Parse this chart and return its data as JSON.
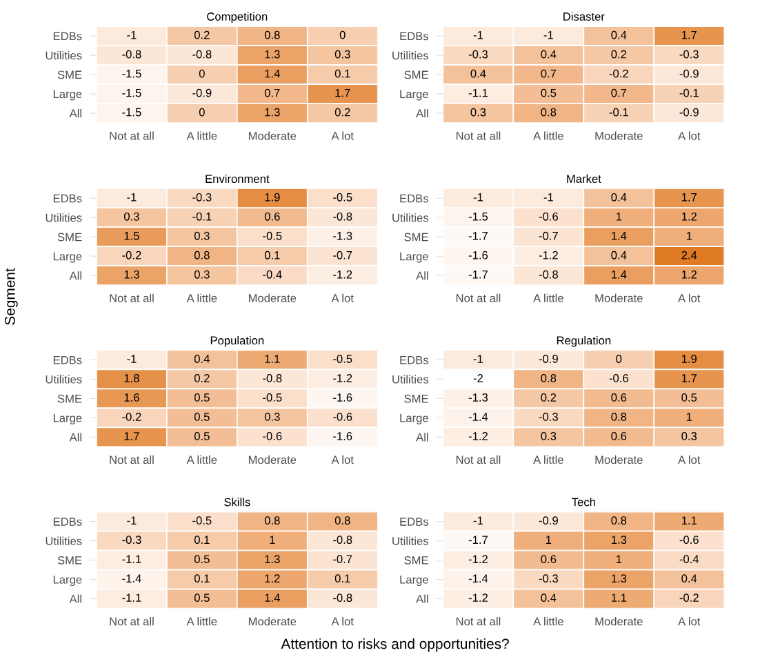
{
  "chart_data": [
    {
      "type": "heatmap",
      "title": "Competition",
      "categories": [
        "Not at all",
        "A little",
        "Moderate",
        "A lot"
      ],
      "y_categories": [
        "EDBs",
        "Utilities",
        "SME",
        "Large",
        "All"
      ],
      "data_labels": true,
      "cells": [
        [
          -1,
          0.2,
          0.8,
          0
        ],
        [
          -0.8,
          -0.8,
          1.3,
          0.3
        ],
        [
          -1.5,
          0,
          1.4,
          0.1
        ],
        [
          -1.5,
          -0.9,
          0.7,
          1.7
        ],
        [
          -1.5,
          0,
          1.3,
          0.2
        ]
      ]
    },
    {
      "type": "heatmap",
      "title": "Disaster",
      "categories": [
        "Not at all",
        "A little",
        "Moderate",
        "A lot"
      ],
      "y_categories": [
        "EDBs",
        "Utilities",
        "SME",
        "Large",
        "All"
      ],
      "data_labels": true,
      "cells": [
        [
          -1,
          -1,
          0.4,
          1.7
        ],
        [
          -0.3,
          0.4,
          0.2,
          -0.3
        ],
        [
          0.4,
          0.7,
          -0.2,
          -0.9
        ],
        [
          -1.1,
          0.5,
          0.7,
          -0.1
        ],
        [
          0.3,
          0.8,
          -0.1,
          -0.9
        ]
      ]
    },
    {
      "type": "heatmap",
      "title": "Environment",
      "ylabel": "Segment",
      "categories": [
        "Not at all",
        "A little",
        "Moderate",
        "A lot"
      ],
      "y_categories": [
        "EDBs",
        "Utilities",
        "SME",
        "Large",
        "All"
      ],
      "data_labels": true,
      "cells": [
        [
          -1,
          -0.3,
          1.9,
          -0.5
        ],
        [
          0.3,
          -0.1,
          0.6,
          -0.8
        ],
        [
          1.5,
          0.3,
          -0.5,
          -1.3
        ],
        [
          -0.2,
          0.8,
          0.1,
          -0.7
        ],
        [
          1.3,
          0.3,
          -0.4,
          -1.2
        ]
      ]
    },
    {
      "type": "heatmap",
      "title": "Market",
      "categories": [
        "Not at all",
        "A little",
        "Moderate",
        "A lot"
      ],
      "y_categories": [
        "EDBs",
        "Utilities",
        "SME",
        "Large",
        "All"
      ],
      "data_labels": true,
      "cells": [
        [
          -1,
          -1,
          0.4,
          1.7
        ],
        [
          -1.5,
          -0.6,
          1,
          1.2
        ],
        [
          -1.7,
          -0.7,
          1.4,
          1
        ],
        [
          -1.6,
          -1.2,
          0.4,
          2.4
        ],
        [
          -1.7,
          -0.8,
          1.4,
          1.2
        ]
      ]
    },
    {
      "type": "heatmap",
      "title": "Population",
      "categories": [
        "Not at all",
        "A little",
        "Moderate",
        "A lot"
      ],
      "y_categories": [
        "EDBs",
        "Utilities",
        "SME",
        "Large",
        "All"
      ],
      "data_labels": true,
      "cells": [
        [
          -1,
          0.4,
          1.1,
          -0.5
        ],
        [
          1.8,
          0.2,
          -0.8,
          -1.2
        ],
        [
          1.6,
          0.5,
          -0.5,
          -1.6
        ],
        [
          -0.2,
          0.5,
          0.3,
          -0.6
        ],
        [
          1.7,
          0.5,
          -0.6,
          -1.6
        ]
      ]
    },
    {
      "type": "heatmap",
      "title": "Regulation",
      "categories": [
        "Not at all",
        "A little",
        "Moderate",
        "A lot"
      ],
      "y_categories": [
        "EDBs",
        "Utilities",
        "SME",
        "Large",
        "All"
      ],
      "data_labels": true,
      "cells": [
        [
          -1,
          -0.9,
          0,
          1.9
        ],
        [
          -2,
          0.8,
          -0.6,
          1.7
        ],
        [
          -1.3,
          0.2,
          0.6,
          0.5
        ],
        [
          -1.4,
          -0.3,
          0.8,
          1
        ],
        [
          -1.2,
          0.3,
          0.6,
          0.3
        ]
      ]
    },
    {
      "type": "heatmap",
      "title": "Skills",
      "categories": [
        "Not at all",
        "A little",
        "Moderate",
        "A lot"
      ],
      "y_categories": [
        "EDBs",
        "Utilities",
        "SME",
        "Large",
        "All"
      ],
      "data_labels": true,
      "cells": [
        [
          -1,
          -0.5,
          0.8,
          0.8
        ],
        [
          -0.3,
          0.1,
          1,
          -0.8
        ],
        [
          -1.1,
          0.5,
          1.3,
          -0.7
        ],
        [
          -1.4,
          0.1,
          1.2,
          0.1
        ],
        [
          -1.1,
          0.5,
          1.4,
          -0.8
        ]
      ]
    },
    {
      "type": "heatmap",
      "title": "Tech",
      "xlabel": "Attention to risks and opportunities?",
      "categories": [
        "Not at all",
        "A little",
        "Moderate",
        "A lot"
      ],
      "y_categories": [
        "EDBs",
        "Utilities",
        "SME",
        "Large",
        "All"
      ],
      "data_labels": true,
      "cells": [
        [
          -1,
          -0.9,
          0.8,
          1.1
        ],
        [
          -1.7,
          1,
          1.3,
          -0.6
        ],
        [
          -1.2,
          0.6,
          1,
          -0.4
        ],
        [
          -1.4,
          -0.3,
          1.3,
          0.4
        ],
        [
          -1.2,
          0.4,
          1.1,
          -0.2
        ]
      ]
    }
  ]
}
